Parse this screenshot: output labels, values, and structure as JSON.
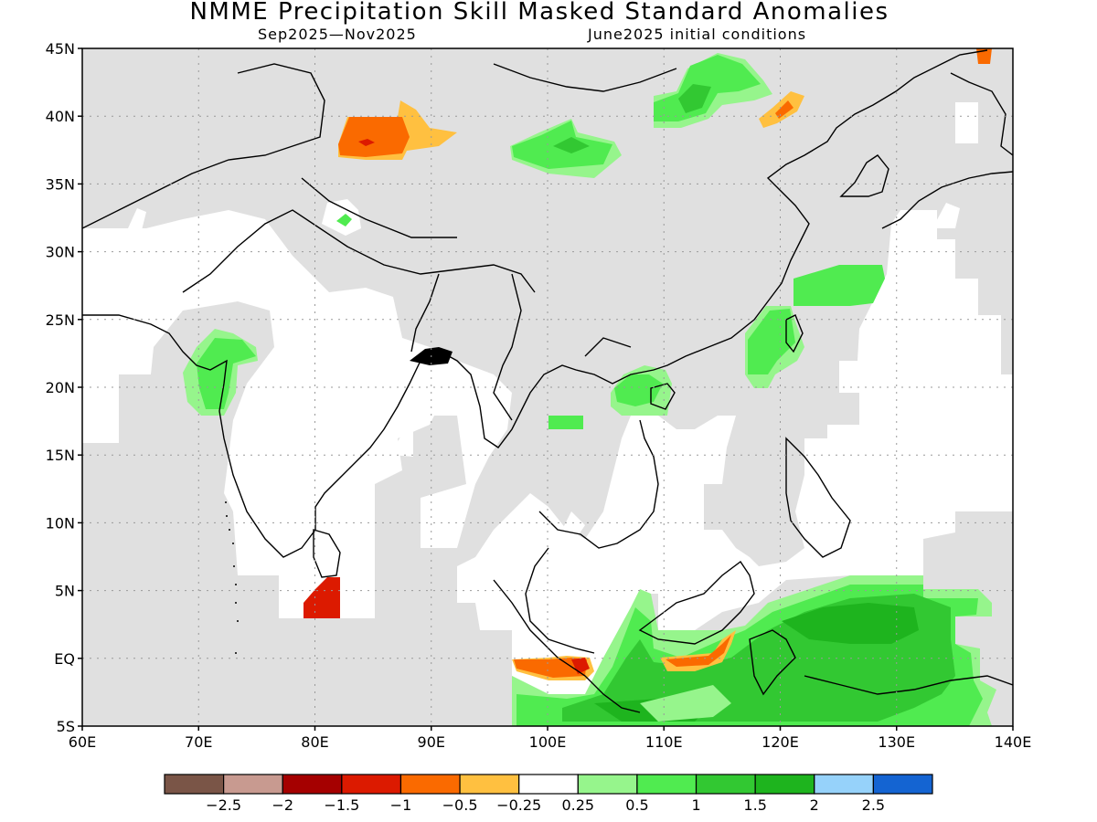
{
  "title": "NMME Precipitation Skill Masked Standard Anomalies",
  "period": "Sep2025—Nov2025",
  "initial_conditions": "June2025 initial conditions",
  "map": {
    "region": "South and East Asia",
    "lon_range": [
      60,
      140
    ],
    "lat_range": [
      -5,
      45
    ],
    "lon_labels": [
      "60E",
      "70E",
      "80E",
      "90E",
      "100E",
      "110E",
      "120E",
      "130E",
      "140E"
    ],
    "lat_labels": [
      "5S",
      "EQ",
      "5N",
      "10N",
      "15N",
      "20N",
      "25N",
      "30N",
      "35N",
      "40N",
      "45N"
    ],
    "grid": "dotted",
    "colors": {
      "masked_no_skill": "#e0e0e0",
      "land_outline": "#000000",
      "near_zero": "#ffffff"
    }
  },
  "colorbar": {
    "colors": [
      "#7a5547",
      "#c89a90",
      "#a50000",
      "#dc1a00",
      "#fa6a00",
      "#ffc040",
      "#ffffff",
      "#96f58c",
      "#50eb50",
      "#32c832",
      "#1eb41e",
      "#96d2fa",
      "#1464d2"
    ],
    "labels": [
      "−2.5",
      "−2",
      "−1.5",
      "−1",
      "−0.5",
      "−0.25",
      "0.25",
      "0.5",
      "1",
      "1.5",
      "2",
      "2.5"
    ]
  }
}
